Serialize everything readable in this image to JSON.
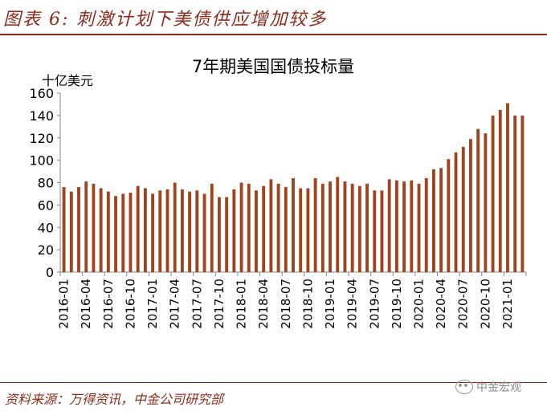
{
  "figure": {
    "title": "图表 6: 刺激计划下美债供应增加较多",
    "source": "资料来源：万得资讯，中金公司研究部",
    "watermark": "中金宏观",
    "watermark_icon": "wechat-icon",
    "accent_color": "#8e2a1a"
  },
  "chart_data": {
    "type": "bar",
    "title": "7年期美国国债投标量",
    "ylabel": "十亿美元",
    "xlabel": "",
    "ylim": [
      0,
      160
    ],
    "yticks": [
      0,
      20,
      40,
      60,
      80,
      100,
      120,
      140,
      160
    ],
    "grid": false,
    "bar_color": "#a0441f",
    "x_tick_labels": [
      "2016-01",
      "2016-04",
      "2016-07",
      "2016-10",
      "2017-01",
      "2017-04",
      "2017-07",
      "2017-10",
      "2018-01",
      "2018-04",
      "2018-07",
      "2018-10",
      "2019-01",
      "2019-04",
      "2019-07",
      "2019-10",
      "2020-01",
      "2020-04",
      "2020-07",
      "2020-10",
      "2021-01"
    ],
    "categories": [
      "2016-01",
      "2016-02",
      "2016-03",
      "2016-04",
      "2016-05",
      "2016-06",
      "2016-07",
      "2016-08",
      "2016-09",
      "2016-10",
      "2016-11",
      "2016-12",
      "2017-01",
      "2017-02",
      "2017-03",
      "2017-04",
      "2017-05",
      "2017-06",
      "2017-07",
      "2017-08",
      "2017-09",
      "2017-10",
      "2017-11",
      "2017-12",
      "2018-01",
      "2018-02",
      "2018-03",
      "2018-04",
      "2018-05",
      "2018-06",
      "2018-07",
      "2018-08",
      "2018-09",
      "2018-10",
      "2018-11",
      "2018-12",
      "2019-01",
      "2019-02",
      "2019-03",
      "2019-04",
      "2019-05",
      "2019-06",
      "2019-07",
      "2019-08",
      "2019-09",
      "2019-10",
      "2019-11",
      "2019-12",
      "2020-01",
      "2020-02",
      "2020-03",
      "2020-04",
      "2020-05",
      "2020-06",
      "2020-07",
      "2020-08",
      "2020-09",
      "2020-10",
      "2020-11",
      "2020-12",
      "2021-01",
      "2021-02",
      "2021-03"
    ],
    "values": [
      76,
      72,
      76,
      81,
      79,
      75,
      72,
      68,
      70,
      71,
      77,
      75,
      70,
      73,
      74,
      80,
      74,
      72,
      73,
      70,
      79,
      67,
      67,
      74,
      80,
      79,
      73,
      77,
      83,
      79,
      76,
      84,
      75,
      75,
      84,
      79,
      81,
      85,
      81,
      79,
      77,
      79,
      73,
      73,
      83,
      82,
      81,
      82,
      79,
      84,
      92,
      93,
      101,
      107,
      112,
      119,
      128,
      124,
      140,
      145,
      151,
      140,
      140
    ]
  }
}
